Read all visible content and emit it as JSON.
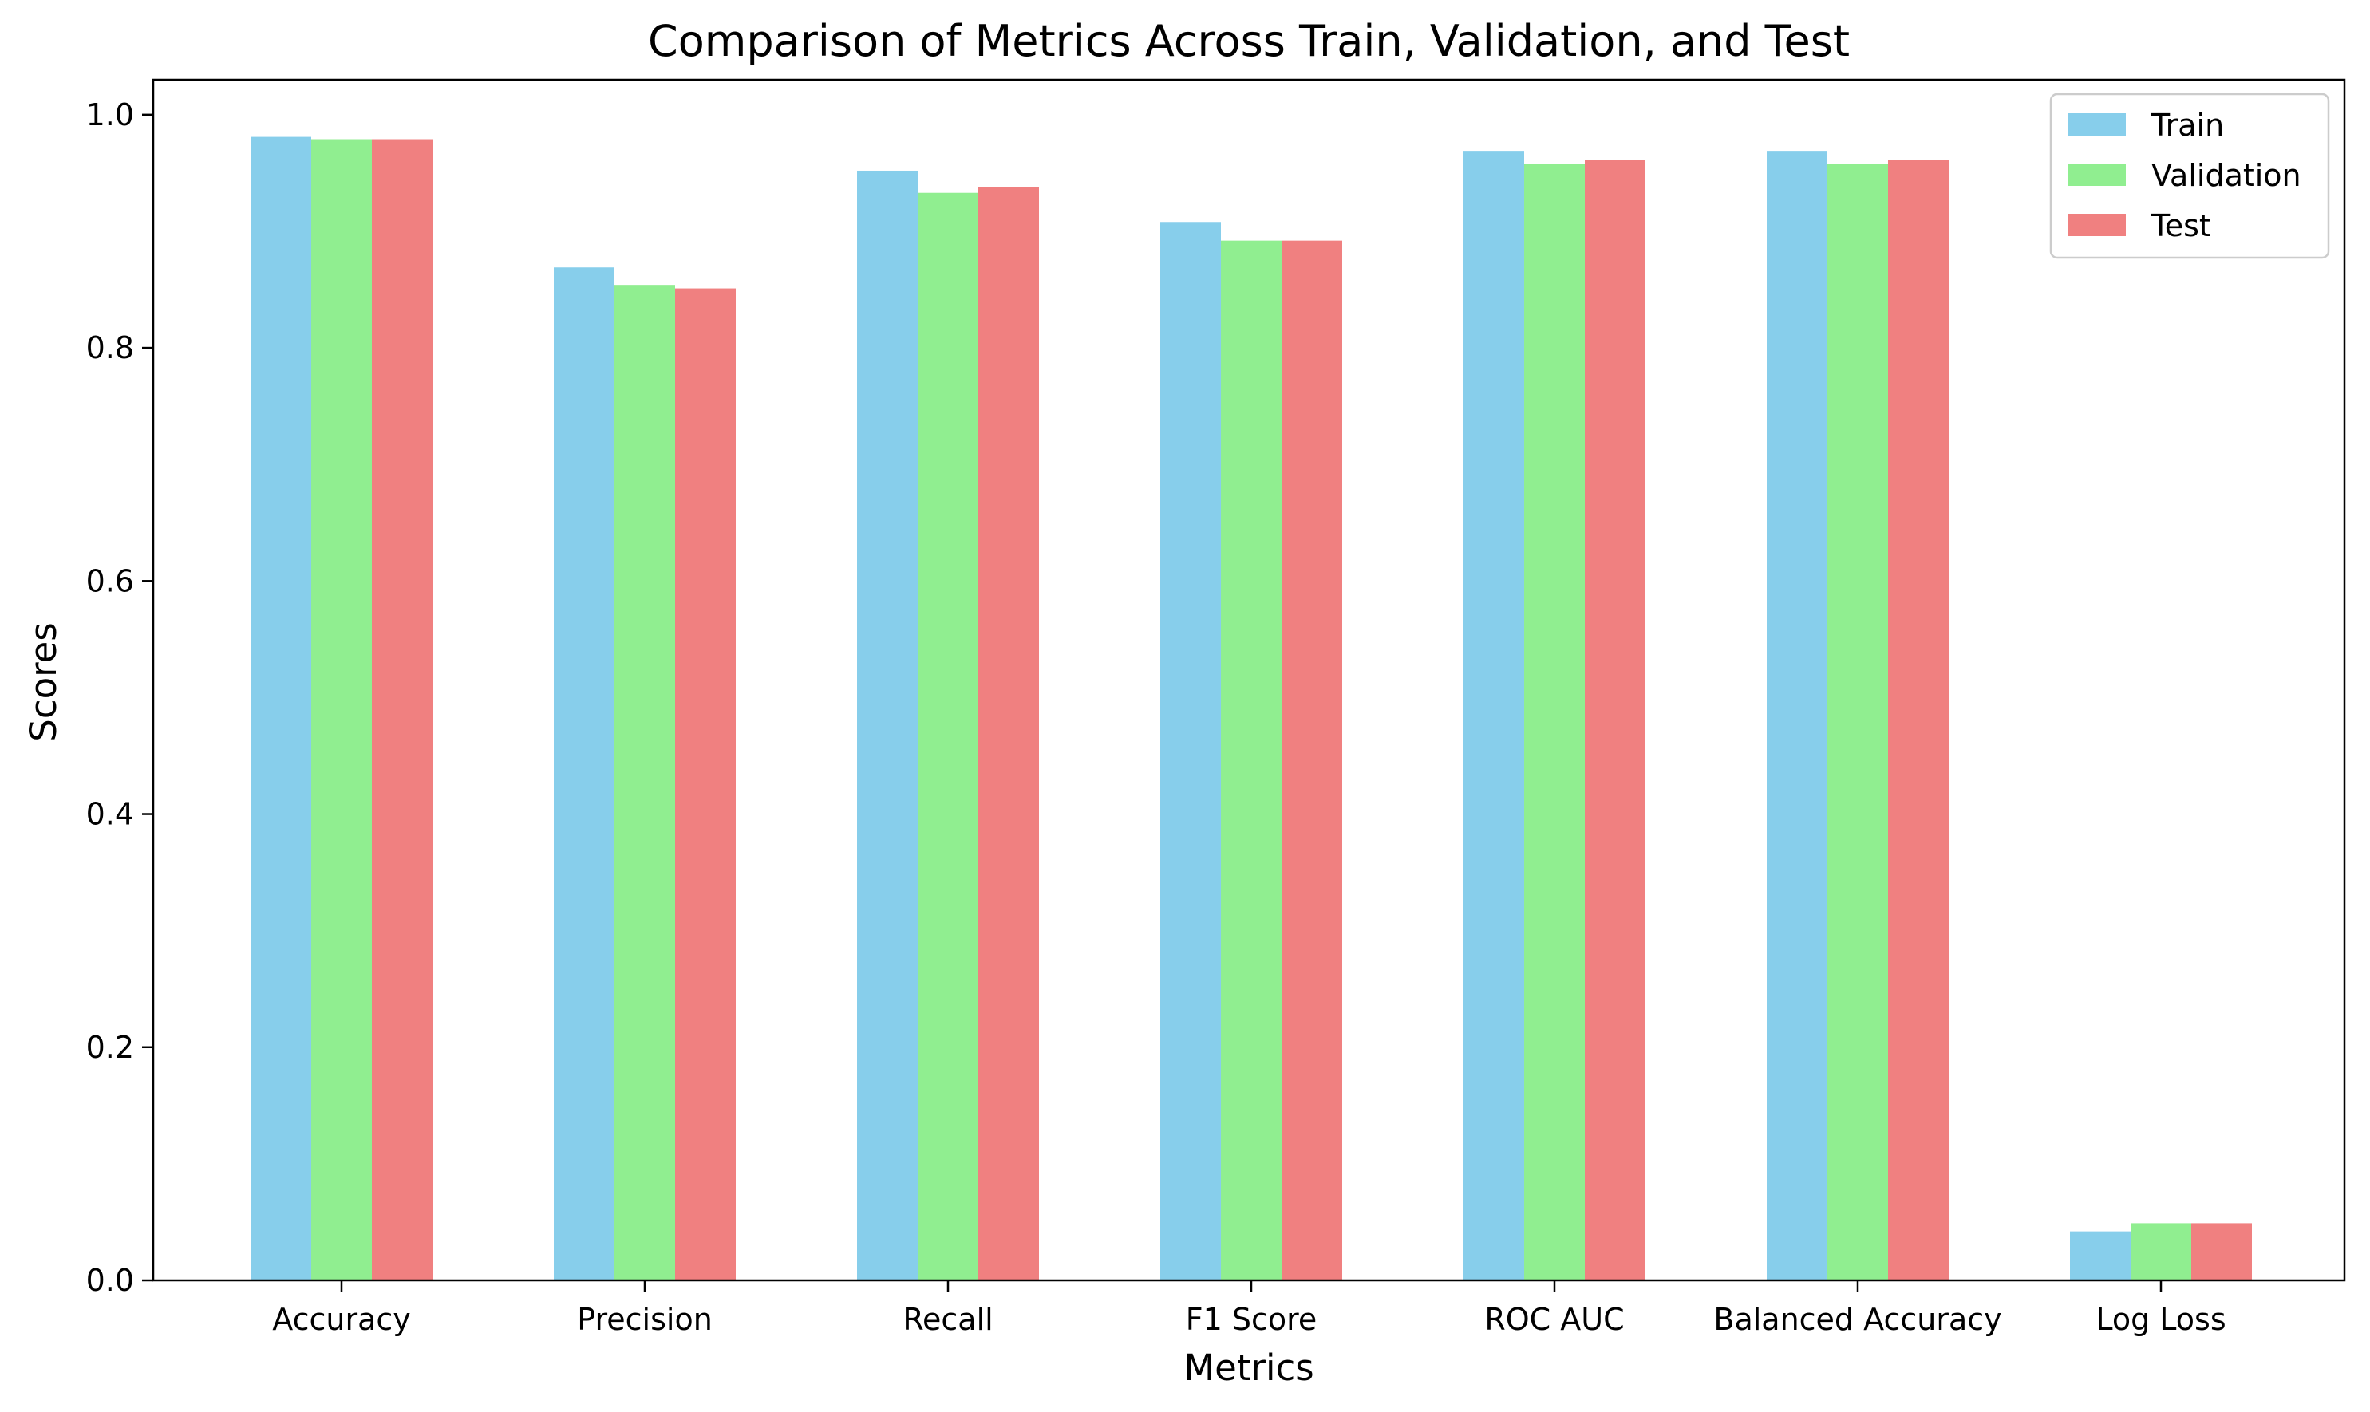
{
  "chart_data": {
    "type": "bar",
    "title": "Comparison of Metrics Across Train, Validation, and Test",
    "xlabel": "Metrics",
    "ylabel": "Scores",
    "categories": [
      "Accuracy",
      "Precision",
      "Recall",
      "F1 Score",
      "ROC AUC",
      "Balanced Accuracy",
      "Log Loss"
    ],
    "series": [
      {
        "name": "Train",
        "color": "#87ceeb",
        "values": [
          0.981,
          0.869,
          0.952,
          0.908,
          0.969,
          0.969,
          0.042
        ]
      },
      {
        "name": "Validation",
        "color": "#90ee90",
        "values": [
          0.979,
          0.854,
          0.933,
          0.892,
          0.958,
          0.958,
          0.049
        ]
      },
      {
        "name": "Test",
        "color": "#f08080",
        "values": [
          0.979,
          0.851,
          0.938,
          0.892,
          0.961,
          0.961,
          0.049
        ]
      }
    ],
    "ylim": [
      0,
      1.03
    ],
    "yticks": [
      "0.0",
      "0.2",
      "0.4",
      "0.6",
      "0.8",
      "1.0"
    ],
    "grid": false,
    "legend_position": "top-right"
  }
}
